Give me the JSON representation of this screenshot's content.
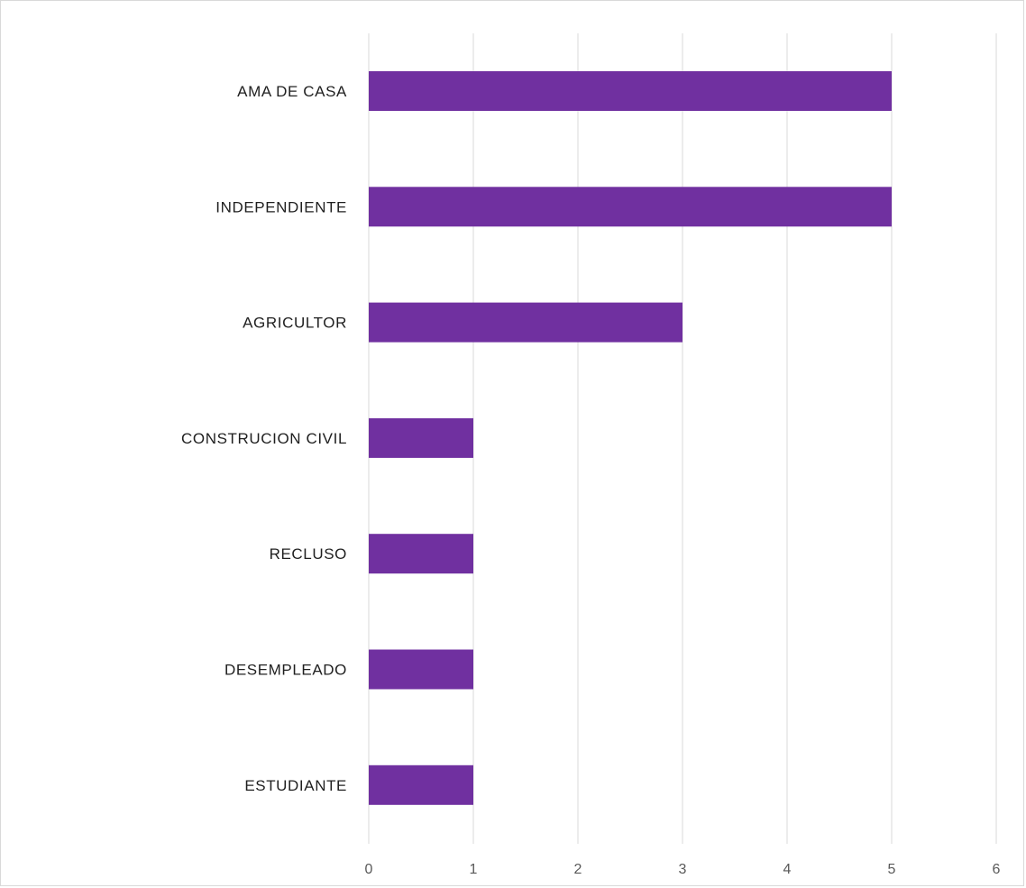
{
  "chart_data": {
    "type": "bar",
    "orientation": "horizontal",
    "title": "",
    "xlabel": "",
    "ylabel": "",
    "categories": [
      "AMA DE CASA",
      "INDEPENDIENTE",
      "AGRICULTOR",
      "CONSTRUCION CIVIL",
      "RECLUSO",
      "DESEMPLEADO",
      "ESTUDIANTE"
    ],
    "values": [
      5,
      5,
      3,
      1,
      1,
      1,
      1
    ],
    "xlim": [
      0,
      6
    ],
    "x_ticks": [
      "0",
      "1",
      "2",
      "3",
      "4",
      "5",
      "6"
    ],
    "grid": "vertical",
    "legend": "none",
    "bar_color": "#7030a0"
  }
}
